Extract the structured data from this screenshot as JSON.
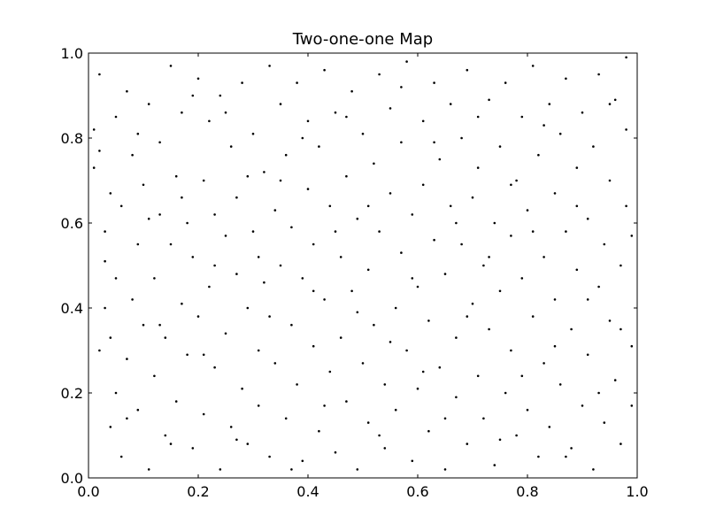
{
  "chart_data": {
    "type": "scatter",
    "title": "Two-one-one Map",
    "xlabel": "",
    "ylabel": "",
    "xlim": [
      0.0,
      1.0
    ],
    "ylim": [
      0.0,
      1.0
    ],
    "grid": false,
    "marker_color": "#000000",
    "xticks": [
      "0.0",
      "0.2",
      "0.4",
      "0.6",
      "0.8",
      "1.0"
    ],
    "yticks": [
      "0.0",
      "0.2",
      "0.4",
      "0.6",
      "0.8",
      "1.0"
    ],
    "series": [
      {
        "points": [
          [
            0.01,
            0.73
          ],
          [
            0.01,
            0.82
          ],
          [
            0.02,
            0.77
          ],
          [
            0.02,
            0.95
          ],
          [
            0.03,
            0.51
          ],
          [
            0.03,
            0.58
          ],
          [
            0.04,
            0.33
          ],
          [
            0.04,
            0.12
          ],
          [
            0.05,
            0.85
          ],
          [
            0.05,
            0.2
          ],
          [
            0.06,
            0.64
          ],
          [
            0.06,
            0.05
          ],
          [
            0.07,
            0.28
          ],
          [
            0.07,
            0.91
          ],
          [
            0.08,
            0.42
          ],
          [
            0.08,
            0.76
          ],
          [
            0.09,
            0.16
          ],
          [
            0.09,
            0.55
          ],
          [
            0.1,
            0.36
          ],
          [
            0.1,
            0.69
          ],
          [
            0.11,
            0.02
          ],
          [
            0.11,
            0.88
          ],
          [
            0.12,
            0.47
          ],
          [
            0.12,
            0.24
          ],
          [
            0.13,
            0.62
          ],
          [
            0.13,
            0.79
          ],
          [
            0.14,
            0.1
          ],
          [
            0.14,
            0.33
          ],
          [
            0.15,
            0.55
          ],
          [
            0.15,
            0.97
          ],
          [
            0.16,
            0.18
          ],
          [
            0.16,
            0.71
          ],
          [
            0.17,
            0.41
          ],
          [
            0.17,
            0.86
          ],
          [
            0.18,
            0.29
          ],
          [
            0.18,
            0.6
          ],
          [
            0.19,
            0.07
          ],
          [
            0.19,
            0.52
          ],
          [
            0.2,
            0.94
          ],
          [
            0.2,
            0.38
          ],
          [
            0.21,
            0.7
          ],
          [
            0.21,
            0.15
          ],
          [
            0.22,
            0.84
          ],
          [
            0.22,
            0.45
          ],
          [
            0.23,
            0.26
          ],
          [
            0.23,
            0.62
          ],
          [
            0.24,
            0.02
          ],
          [
            0.24,
            0.9
          ],
          [
            0.25,
            0.57
          ],
          [
            0.25,
            0.34
          ],
          [
            0.26,
            0.12
          ],
          [
            0.26,
            0.78
          ],
          [
            0.27,
            0.48
          ],
          [
            0.27,
            0.66
          ],
          [
            0.28,
            0.21
          ],
          [
            0.28,
            0.93
          ],
          [
            0.29,
            0.4
          ],
          [
            0.29,
            0.08
          ],
          [
            0.3,
            0.81
          ],
          [
            0.3,
            0.58
          ],
          [
            0.31,
            0.3
          ],
          [
            0.31,
            0.17
          ],
          [
            0.32,
            0.72
          ],
          [
            0.32,
            0.46
          ],
          [
            0.33,
            0.97
          ],
          [
            0.33,
            0.05
          ],
          [
            0.34,
            0.63
          ],
          [
            0.34,
            0.27
          ],
          [
            0.35,
            0.88
          ],
          [
            0.35,
            0.5
          ],
          [
            0.36,
            0.14
          ],
          [
            0.36,
            0.76
          ],
          [
            0.37,
            0.36
          ],
          [
            0.37,
            0.59
          ],
          [
            0.38,
            0.93
          ],
          [
            0.38,
            0.22
          ],
          [
            0.39,
            0.47
          ],
          [
            0.39,
            0.04
          ],
          [
            0.4,
            0.68
          ],
          [
            0.4,
            0.84
          ],
          [
            0.41,
            0.31
          ],
          [
            0.41,
            0.55
          ],
          [
            0.42,
            0.11
          ],
          [
            0.42,
            0.78
          ],
          [
            0.43,
            0.42
          ],
          [
            0.43,
            0.96
          ],
          [
            0.44,
            0.25
          ],
          [
            0.44,
            0.64
          ],
          [
            0.45,
            0.06
          ],
          [
            0.45,
            0.86
          ],
          [
            0.46,
            0.52
          ],
          [
            0.46,
            0.33
          ],
          [
            0.47,
            0.18
          ],
          [
            0.47,
            0.71
          ],
          [
            0.48,
            0.91
          ],
          [
            0.48,
            0.44
          ],
          [
            0.49,
            0.02
          ],
          [
            0.49,
            0.61
          ],
          [
            0.5,
            0.27
          ],
          [
            0.5,
            0.81
          ],
          [
            0.51,
            0.49
          ],
          [
            0.51,
            0.13
          ],
          [
            0.52,
            0.74
          ],
          [
            0.52,
            0.36
          ],
          [
            0.53,
            0.95
          ],
          [
            0.53,
            0.58
          ],
          [
            0.54,
            0.07
          ],
          [
            0.54,
            0.22
          ],
          [
            0.55,
            0.67
          ],
          [
            0.55,
            0.87
          ],
          [
            0.56,
            0.4
          ],
          [
            0.56,
            0.16
          ],
          [
            0.57,
            0.53
          ],
          [
            0.57,
            0.79
          ],
          [
            0.58,
            0.3
          ],
          [
            0.58,
            0.98
          ],
          [
            0.59,
            0.04
          ],
          [
            0.59,
            0.62
          ],
          [
            0.6,
            0.45
          ],
          [
            0.6,
            0.21
          ],
          [
            0.61,
            0.84
          ],
          [
            0.61,
            0.69
          ],
          [
            0.62,
            0.11
          ],
          [
            0.62,
            0.37
          ],
          [
            0.63,
            0.93
          ],
          [
            0.63,
            0.56
          ],
          [
            0.64,
            0.26
          ],
          [
            0.64,
            0.75
          ],
          [
            0.65,
            0.02
          ],
          [
            0.65,
            0.48
          ],
          [
            0.66,
            0.64
          ],
          [
            0.66,
            0.88
          ],
          [
            0.67,
            0.19
          ],
          [
            0.67,
            0.33
          ],
          [
            0.68,
            0.8
          ],
          [
            0.68,
            0.55
          ],
          [
            0.69,
            0.08
          ],
          [
            0.69,
            0.96
          ],
          [
            0.7,
            0.41
          ],
          [
            0.7,
            0.66
          ],
          [
            0.71,
            0.24
          ],
          [
            0.71,
            0.73
          ],
          [
            0.72,
            0.5
          ],
          [
            0.72,
            0.14
          ],
          [
            0.73,
            0.89
          ],
          [
            0.73,
            0.35
          ],
          [
            0.74,
            0.6
          ],
          [
            0.74,
            0.03
          ],
          [
            0.75,
            0.78
          ],
          [
            0.75,
            0.44
          ],
          [
            0.76,
            0.2
          ],
          [
            0.76,
            0.93
          ],
          [
            0.77,
            0.57
          ],
          [
            0.77,
            0.3
          ],
          [
            0.78,
            0.1
          ],
          [
            0.78,
            0.7
          ],
          [
            0.79,
            0.85
          ],
          [
            0.79,
            0.47
          ],
          [
            0.8,
            0.16
          ],
          [
            0.8,
            0.63
          ],
          [
            0.81,
            0.38
          ],
          [
            0.81,
            0.97
          ],
          [
            0.82,
            0.05
          ],
          [
            0.82,
            0.76
          ],
          [
            0.83,
            0.52
          ],
          [
            0.83,
            0.27
          ],
          [
            0.84,
            0.88
          ],
          [
            0.84,
            0.12
          ],
          [
            0.85,
            0.67
          ],
          [
            0.85,
            0.42
          ],
          [
            0.86,
            0.81
          ],
          [
            0.86,
            0.22
          ],
          [
            0.87,
            0.58
          ],
          [
            0.87,
            0.94
          ],
          [
            0.88,
            0.07
          ],
          [
            0.88,
            0.35
          ],
          [
            0.89,
            0.73
          ],
          [
            0.89,
            0.49
          ],
          [
            0.9,
            0.17
          ],
          [
            0.9,
            0.86
          ],
          [
            0.91,
            0.61
          ],
          [
            0.91,
            0.29
          ],
          [
            0.92,
            0.02
          ],
          [
            0.92,
            0.78
          ],
          [
            0.93,
            0.45
          ],
          [
            0.93,
            0.95
          ],
          [
            0.94,
            0.13
          ],
          [
            0.94,
            0.55
          ],
          [
            0.95,
            0.7
          ],
          [
            0.95,
            0.37
          ],
          [
            0.96,
            0.23
          ],
          [
            0.96,
            0.89
          ],
          [
            0.97,
            0.5
          ],
          [
            0.97,
            0.08
          ],
          [
            0.98,
            0.64
          ],
          [
            0.98,
            0.82
          ],
          [
            0.99,
            0.31
          ],
          [
            0.99,
            0.57
          ],
          [
            0.99,
            0.17
          ],
          [
            0.98,
            0.99
          ],
          [
            0.03,
            0.4
          ],
          [
            0.05,
            0.47
          ],
          [
            0.07,
            0.14
          ],
          [
            0.09,
            0.81
          ],
          [
            0.11,
            0.61
          ],
          [
            0.13,
            0.36
          ],
          [
            0.15,
            0.08
          ],
          [
            0.17,
            0.66
          ],
          [
            0.19,
            0.9
          ],
          [
            0.21,
            0.29
          ],
          [
            0.23,
            0.5
          ],
          [
            0.25,
            0.86
          ],
          [
            0.27,
            0.09
          ],
          [
            0.29,
            0.71
          ],
          [
            0.31,
            0.52
          ],
          [
            0.33,
            0.38
          ],
          [
            0.35,
            0.7
          ],
          [
            0.37,
            0.02
          ],
          [
            0.39,
            0.8
          ],
          [
            0.41,
            0.44
          ],
          [
            0.43,
            0.17
          ],
          [
            0.45,
            0.58
          ],
          [
            0.47,
            0.85
          ],
          [
            0.49,
            0.39
          ],
          [
            0.51,
            0.64
          ],
          [
            0.53,
            0.1
          ],
          [
            0.55,
            0.32
          ],
          [
            0.57,
            0.92
          ],
          [
            0.59,
            0.47
          ],
          [
            0.61,
            0.25
          ],
          [
            0.63,
            0.79
          ],
          [
            0.65,
            0.14
          ],
          [
            0.67,
            0.6
          ],
          [
            0.69,
            0.38
          ],
          [
            0.71,
            0.85
          ],
          [
            0.73,
            0.52
          ],
          [
            0.75,
            0.09
          ],
          [
            0.77,
            0.69
          ],
          [
            0.79,
            0.24
          ],
          [
            0.81,
            0.58
          ],
          [
            0.83,
            0.83
          ],
          [
            0.85,
            0.31
          ],
          [
            0.87,
            0.05
          ],
          [
            0.89,
            0.64
          ],
          [
            0.91,
            0.42
          ],
          [
            0.93,
            0.2
          ],
          [
            0.95,
            0.88
          ],
          [
            0.97,
            0.35
          ],
          [
            0.02,
            0.3
          ],
          [
            0.04,
            0.67
          ]
        ]
      }
    ]
  }
}
